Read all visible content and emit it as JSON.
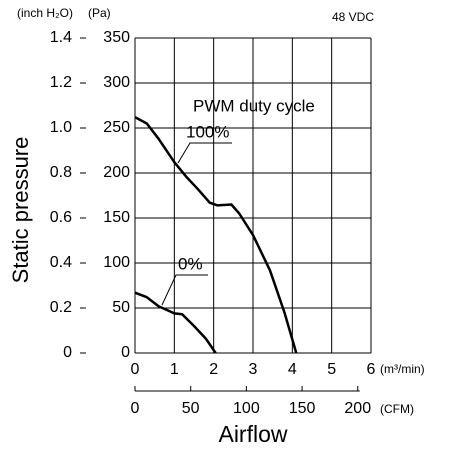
{
  "chart_data": {
    "type": "line",
    "annotation_top": "48 VDC",
    "ylabel": "Static pressure",
    "xlabel": "Airflow",
    "y_unit": "(Pa)",
    "y2_unit": "(inch H₂O)",
    "x_unit": "(m³/min)",
    "x2_unit": "(CFM)",
    "legend_title": "PWM duty cycle",
    "grid": true,
    "xlim": [
      0,
      6
    ],
    "xticks": [
      0,
      1,
      2,
      3,
      4,
      5,
      6
    ],
    "x2lim": [
      0,
      211.9
    ],
    "x2ticks": [
      0,
      50,
      100,
      150,
      200
    ],
    "ylim": [
      0,
      350
    ],
    "yticks": [
      0,
      50,
      100,
      150,
      200,
      250,
      300,
      350
    ],
    "y2lim": [
      0,
      1.4
    ],
    "y2ticks": [
      0,
      0.2,
      0.4,
      0.6,
      0.8,
      {
        "value": 1,
        "label": "1.0"
      },
      1.2,
      1.4
    ],
    "series": [
      {
        "name": "100%",
        "color": "#000000",
        "x": [
          0,
          0.3,
          0.6,
          1,
          1.3,
          1.6,
          1.9,
          2.1,
          2.45,
          2.65,
          3,
          3.43,
          3.8,
          4.1
        ],
        "values": [
          262,
          255,
          238,
          212,
          196,
          182,
          167,
          164,
          165,
          155,
          131,
          92,
          45,
          0
        ]
      },
      {
        "name": "0%",
        "color": "#000000",
        "x": [
          0,
          0.3,
          0.6,
          1,
          1.2,
          1.5,
          1.8,
          2.05
        ],
        "values": [
          67,
          62,
          52,
          44,
          43,
          30,
          16,
          0
        ]
      }
    ]
  }
}
